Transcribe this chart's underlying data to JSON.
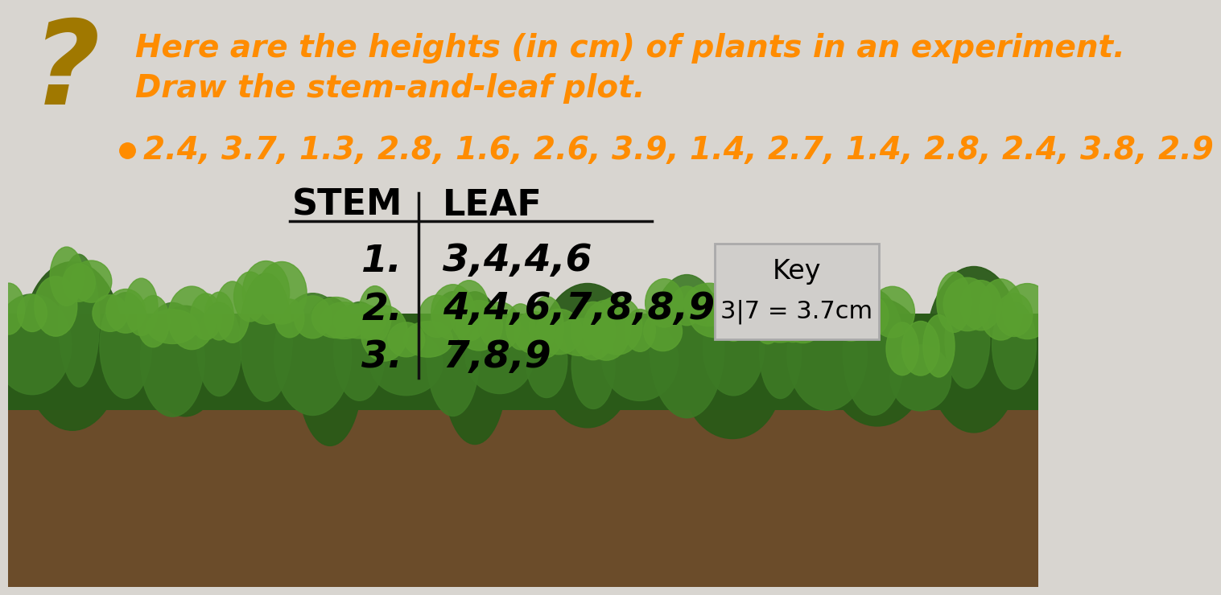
{
  "title_line1": "Here are the heights (in cm) of plants in an experiment.",
  "title_line2": "Draw the stem-and-leaf plot.",
  "data_list": "2.4, 3.7, 1.3, 2.8, 1.6, 2.6, 3.9, 1.4, 2.7, 1.4, 2.8, 2.4, 3.8, 2.9",
  "orange_color": "#FF8C00",
  "gold_color": "#A07800",
  "stem_header": "STEM",
  "leaf_header": "LEAF",
  "stems": [
    "1.",
    "2.",
    "3."
  ],
  "leaves": [
    "3,4,4,6",
    "4,4,6,7,8,8,9",
    "7,8,9"
  ],
  "key_stem": "3",
  "key_sep": "|",
  "key_leaf": "7",
  "key_text": " = 3.7cm",
  "key_label": "Key",
  "table_line_color": "#111111",
  "wall_color": "#D8D5D0",
  "shelf_color": "#C4A06A",
  "ground_color": "#6B4C2A",
  "plant_dark": "#2A5A18",
  "plant_mid": "#3D7A25",
  "plant_light": "#5AA030"
}
